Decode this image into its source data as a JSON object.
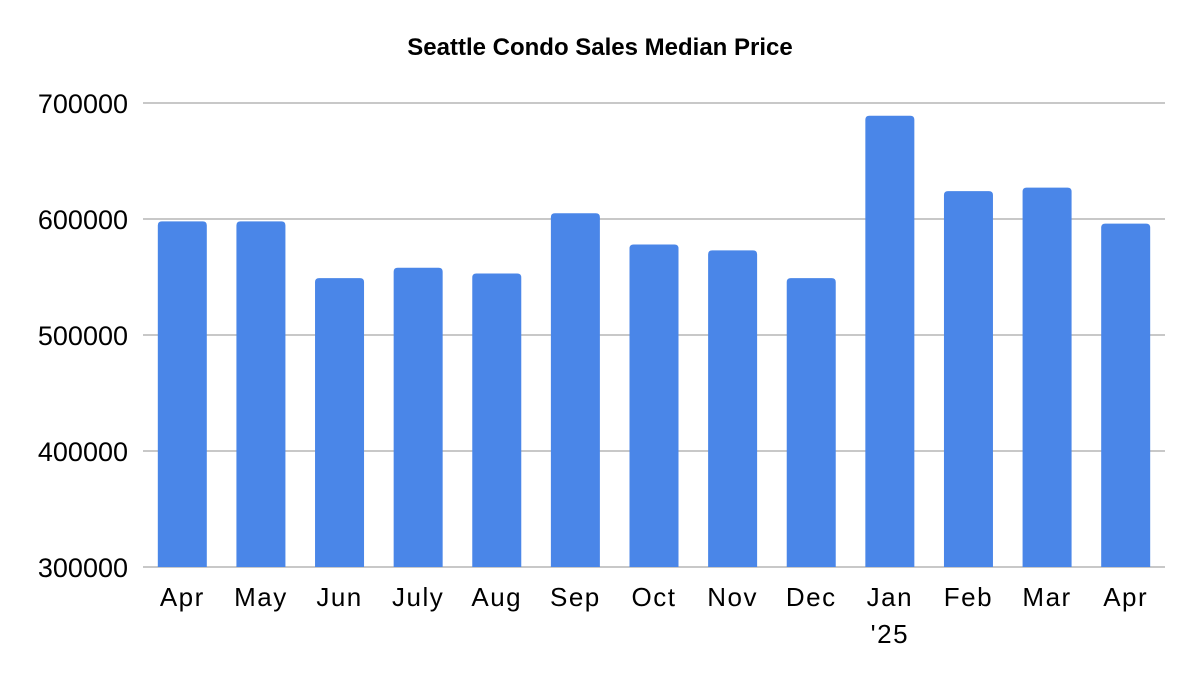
{
  "chart_data": {
    "type": "bar",
    "title": "Seattle Condo Sales Median Price",
    "xlabel": "",
    "ylabel": "",
    "categories": [
      [
        "Apr"
      ],
      [
        "May"
      ],
      [
        "Jun"
      ],
      [
        "July"
      ],
      [
        "Aug"
      ],
      [
        "Sep"
      ],
      [
        "Oct"
      ],
      [
        "Nov"
      ],
      [
        "Dec"
      ],
      [
        "Jan",
        "'25"
      ],
      [
        "Feb"
      ],
      [
        "Mar"
      ],
      [
        "Apr"
      ]
    ],
    "values": [
      598000,
      598000,
      549000,
      558000,
      553000,
      605000,
      578000,
      573000,
      549000,
      689000,
      624000,
      627000,
      596000
    ],
    "yticks": [
      "300000",
      "400000",
      "500000",
      "600000",
      "700000"
    ],
    "ylim": [
      300000,
      700000
    ],
    "grid": true,
    "legend": "none",
    "bar_color": "#4a86e8"
  }
}
